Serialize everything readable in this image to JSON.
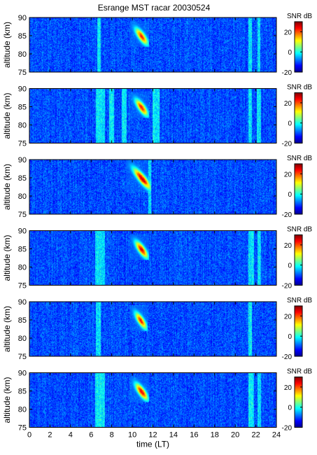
{
  "title": "Esrange MST racar 20030524",
  "chart_data": [
    {
      "type": "heatmap",
      "panel": 1,
      "ylabel": "altitude (km)",
      "yticks": [
        75,
        80,
        85,
        90
      ],
      "ylim": [
        75,
        90
      ],
      "xlim": [
        0,
        24
      ],
      "colorbar": {
        "label": "SNR dB",
        "ticks": [
          -20,
          0,
          20
        ],
        "range": [
          -20,
          30
        ]
      },
      "stripes": [
        [
          6.6,
          6.9
        ],
        [
          21.3,
          21.6
        ],
        [
          22.2,
          22.4
        ]
      ],
      "echo": {
        "time_range": [
          10.0,
          11.3
        ],
        "altitude_range": [
          83,
          88
        ],
        "peak_db": 25
      }
    },
    {
      "type": "heatmap",
      "panel": 2,
      "ylabel": "altitude (km)",
      "yticks": [
        75,
        80,
        85,
        90
      ],
      "ylim": [
        75,
        90
      ],
      "xlim": [
        0,
        24
      ],
      "colorbar": {
        "label": "SNR dB",
        "ticks": [
          -20,
          0,
          20
        ],
        "range": [
          -20,
          30
        ]
      },
      "stripes": [
        [
          6.5,
          7.3
        ],
        [
          7.8,
          8.2
        ],
        [
          9.0,
          9.4
        ],
        [
          12.0,
          12.6
        ],
        [
          21.3,
          21.6
        ],
        [
          22.1,
          22.5
        ]
      ],
      "echo": {
        "time_range": [
          10.0,
          11.3
        ],
        "altitude_range": [
          83,
          88
        ],
        "peak_db": 25
      }
    },
    {
      "type": "heatmap",
      "panel": 3,
      "ylabel": "altitude (km)",
      "yticks": [
        75,
        80,
        85,
        90
      ],
      "ylim": [
        75,
        90
      ],
      "xlim": [
        0,
        24
      ],
      "colorbar": {
        "label": "SNR dB",
        "ticks": [
          -20,
          0,
          20
        ],
        "range": [
          -20,
          30
        ]
      },
      "stripes": [
        [
          11.6,
          11.8
        ]
      ],
      "echo": {
        "time_range": [
          9.7,
          11.5
        ],
        "altitude_range": [
          82,
          89
        ],
        "peak_db": 30
      }
    },
    {
      "type": "heatmap",
      "panel": 4,
      "ylabel": "altitude (km)",
      "yticks": [
        75,
        80,
        85,
        90
      ],
      "ylim": [
        75,
        90
      ],
      "xlim": [
        0,
        24
      ],
      "colorbar": {
        "label": "SNR dB",
        "ticks": [
          -20,
          0,
          20
        ],
        "range": [
          -20,
          30
        ]
      },
      "stripes": [
        [
          6.4,
          7.3
        ],
        [
          21.3,
          21.8
        ],
        [
          22.2,
          22.5
        ]
      ],
      "echo": {
        "time_range": [
          10.0,
          11.3
        ],
        "altitude_range": [
          83,
          88
        ],
        "peak_db": 28
      }
    },
    {
      "type": "heatmap",
      "panel": 5,
      "ylabel": "altitude (km)",
      "yticks": [
        75,
        80,
        85,
        90
      ],
      "ylim": [
        75,
        90
      ],
      "xlim": [
        0,
        24
      ],
      "colorbar": {
        "label": "SNR dB",
        "ticks": [
          -20,
          0,
          20
        ],
        "range": [
          -20,
          30
        ]
      },
      "stripes": [
        [
          6.5,
          6.9
        ],
        [
          21.3,
          21.6
        ]
      ],
      "echo": {
        "time_range": [
          10.0,
          11.2
        ],
        "altitude_range": [
          83,
          88
        ],
        "peak_db": 25
      }
    },
    {
      "type": "heatmap",
      "panel": 6,
      "ylabel": "altitude (km)",
      "yticks": [
        75,
        80,
        85,
        90
      ],
      "ylim": [
        75,
        90
      ],
      "xlim": [
        0,
        24
      ],
      "xlabel": "time (LT)",
      "xticks": [
        0,
        2,
        4,
        6,
        8,
        10,
        12,
        14,
        16,
        18,
        20,
        22,
        24
      ],
      "colorbar": {
        "label": "SNR dB",
        "ticks": [
          -20,
          0,
          20
        ],
        "range": [
          -20,
          30
        ]
      },
      "stripes": [
        [
          6.4,
          7.3
        ],
        [
          21.3,
          21.8
        ],
        [
          22.2,
          22.5
        ]
      ],
      "echo": {
        "time_range": [
          10.0,
          11.3
        ],
        "altitude_range": [
          83,
          88
        ],
        "peak_db": 28
      }
    }
  ]
}
